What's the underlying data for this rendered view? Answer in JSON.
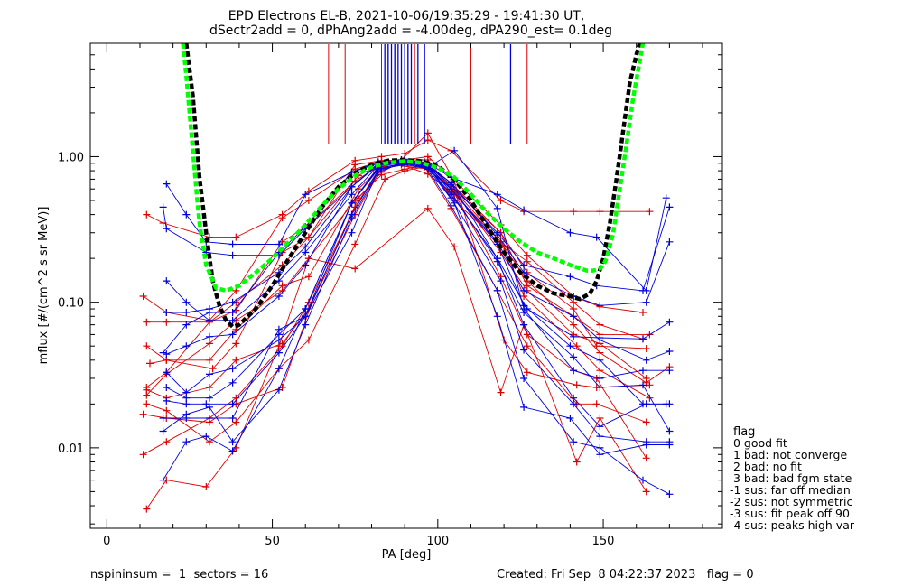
{
  "chart_data": {
    "type": "line",
    "title": "EPD Electrons EL-B, 2021-10-06/19:35:29 - 19:41:30 UT,",
    "subtitle": "dSectr2add = 0, dPhAng2add = -4.00deg, dPA290_est=   0.1deg",
    "xlabel": "PA [deg]",
    "ylabel": "mflux [#/(cm^2 s sr MeV)]",
    "xlim": [
      -5,
      186
    ],
    "ylim": [
      0.0028,
      6.0
    ],
    "yscale": "log",
    "x_ticks": [
      0,
      50,
      100,
      150
    ],
    "y_ticks": [
      0.01,
      0.1,
      1.0
    ],
    "y_tick_labels": [
      "0.01",
      "0.10",
      "1.00"
    ],
    "grid": false,
    "legend": {
      "title": "flag",
      "entries": [
        " 0 good fit",
        " 1 bad: not converge",
        " 2 bad: no fit",
        " 3 bad: bad fgm state",
        "-1 sus: far off median",
        "-2 sus: not symmetric",
        "-3 sus: fit peak off 90",
        "-4 sus: peaks high var"
      ]
    },
    "footer": {
      "left": "nspininsum =  1  sectors = 16",
      "right": "Created: Fri Sep  8 04:22:37 2023   flag = 0"
    },
    "peak_markers": {
      "red_x": [
        67,
        72,
        83,
        85,
        87,
        89,
        91,
        93,
        110,
        127
      ],
      "blue_x": [
        84,
        85,
        86,
        87,
        88,
        89,
        90,
        91,
        92,
        94,
        96,
        122
      ]
    },
    "fit_curves": [
      {
        "color": "#000000",
        "x": [
          24,
          26,
          28,
          30,
          32,
          34,
          36,
          38,
          40,
          45,
          50,
          55,
          60,
          65,
          70,
          75,
          80,
          85,
          90,
          95,
          100,
          105,
          110,
          115,
          120,
          125,
          130,
          135,
          140,
          143,
          146,
          148,
          150,
          152,
          154,
          156,
          158,
          160,
          161
        ],
        "y": [
          6.0,
          2.6,
          0.72,
          0.3,
          0.14,
          0.095,
          0.075,
          0.068,
          0.07,
          0.09,
          0.13,
          0.2,
          0.3,
          0.45,
          0.62,
          0.77,
          0.88,
          0.94,
          0.95,
          0.93,
          0.86,
          0.7,
          0.5,
          0.33,
          0.22,
          0.16,
          0.13,
          0.115,
          0.11,
          0.105,
          0.115,
          0.14,
          0.2,
          0.35,
          0.7,
          1.5,
          3.2,
          5.0,
          6.0
        ]
      },
      {
        "color": "#00ff00",
        "x": [
          23,
          24,
          25,
          26,
          27,
          28,
          30,
          33,
          36,
          40,
          45,
          50,
          55,
          60,
          65,
          70,
          75,
          80,
          85,
          90,
          95,
          100,
          105,
          110,
          115,
          120,
          125,
          130,
          135,
          140,
          145,
          147,
          149,
          150,
          151,
          153,
          155,
          157,
          159,
          161,
          162
        ],
        "y": [
          6.0,
          3.6,
          2.0,
          1.1,
          0.6,
          0.35,
          0.18,
          0.125,
          0.12,
          0.13,
          0.16,
          0.2,
          0.26,
          0.34,
          0.46,
          0.6,
          0.74,
          0.85,
          0.91,
          0.93,
          0.91,
          0.84,
          0.72,
          0.55,
          0.41,
          0.32,
          0.26,
          0.22,
          0.2,
          0.18,
          0.165,
          0.165,
          0.17,
          0.18,
          0.2,
          0.3,
          0.6,
          1.2,
          2.5,
          4.5,
          6.0
        ]
      }
    ],
    "series": [
      {
        "color": "#dd0000",
        "x": [
          12,
          18,
          31,
          39,
          53,
          61,
          75,
          83,
          89,
          97,
          104,
          119,
          127,
          141,
          149,
          163,
          170
        ],
        "y": [
          0.026,
          0.033,
          0.073,
          0.088,
          0.26,
          0.34,
          0.68,
          0.88,
          0.9,
          0.88,
          0.62,
          0.26,
          0.14,
          0.07,
          0.045,
          0.028,
          0.036
        ]
      },
      {
        "color": "#dd0000",
        "x": [
          11,
          18,
          31,
          39,
          53,
          61,
          75,
          83,
          90,
          97,
          105,
          119,
          127,
          141,
          149,
          163
        ],
        "y": [
          0.11,
          0.085,
          0.075,
          0.12,
          0.38,
          0.5,
          0.82,
          0.93,
          0.86,
          0.82,
          0.58,
          0.22,
          0.12,
          0.06,
          0.052,
          0.03
        ]
      },
      {
        "color": "#dd0000",
        "x": [
          12,
          18,
          32,
          39,
          53,
          61,
          76,
          83,
          90,
          97,
          104,
          119,
          127,
          141,
          148,
          163
        ],
        "y": [
          0.05,
          0.04,
          0.035,
          0.052,
          0.22,
          0.28,
          0.74,
          0.9,
          0.9,
          0.84,
          0.62,
          0.3,
          0.16,
          0.09,
          0.05,
          0.048
        ]
      },
      {
        "color": "#dd0000",
        "x": [
          12,
          18,
          31,
          39,
          53,
          61,
          75,
          83,
          90,
          96,
          105,
          120,
          126,
          142,
          149,
          164
        ],
        "y": [
          0.025,
          0.022,
          0.026,
          0.04,
          0.052,
          0.09,
          0.4,
          0.83,
          0.88,
          0.92,
          0.5,
          0.24,
          0.11,
          0.05,
          0.034,
          0.022
        ]
      },
      {
        "color": "#dd0000",
        "x": [
          11,
          18,
          31,
          39,
          53,
          61,
          75,
          83,
          89,
          97,
          105,
          119,
          127,
          141,
          148,
          163
        ],
        "y": [
          0.009,
          0.011,
          0.016,
          0.022,
          0.05,
          0.1,
          0.45,
          0.88,
          0.95,
          0.95,
          0.56,
          0.15,
          0.06,
          0.034,
          0.03,
          0.0085
        ]
      },
      {
        "color": "#dd0000",
        "x": [
          12,
          17,
          31,
          39,
          53,
          61,
          75,
          83,
          90,
          97,
          104,
          119,
          126,
          141,
          149,
          164
        ],
        "y": [
          0.4,
          0.35,
          0.28,
          0.28,
          0.4,
          0.58,
          0.94,
          1.0,
          1.05,
          1.3,
          1.1,
          0.5,
          0.42,
          0.42,
          0.42,
          0.42
        ]
      },
      {
        "color": "#dd0000",
        "x": [
          13,
          18,
          31,
          39,
          53,
          61,
          76,
          83,
          89,
          97,
          105,
          119,
          127,
          141,
          149,
          162
        ],
        "y": [
          0.038,
          0.04,
          0.04,
          0.065,
          0.13,
          0.15,
          0.6,
          0.85,
          0.88,
          0.76,
          0.55,
          0.26,
          0.19,
          0.1,
          0.07,
          0.056
        ]
      },
      {
        "color": "#dd0000",
        "x": [
          12,
          18,
          31,
          39,
          52,
          61,
          75,
          84,
          90,
          96,
          104,
          118,
          127,
          142,
          148,
          163
        ],
        "y": [
          0.02,
          0.018,
          0.011,
          0.015,
          0.035,
          0.055,
          0.25,
          0.7,
          0.8,
          0.85,
          0.44,
          0.12,
          0.05,
          0.02,
          0.02,
          0.015
        ]
      },
      {
        "color": "#dd0000",
        "x": [
          12,
          18,
          30,
          39,
          52,
          61,
          75,
          97,
          105,
          119,
          126,
          142,
          149,
          163
        ],
        "y": [
          0.0038,
          0.006,
          0.0054,
          0.01,
          0.05,
          0.2,
          0.17,
          0.44,
          0.24,
          0.024,
          0.07,
          0.008,
          0.016,
          0.005
        ]
      },
      {
        "color": "#dd0000",
        "x": [
          12,
          18,
          31,
          39,
          53,
          61,
          75,
          83,
          89,
          97,
          105,
          120,
          127,
          142,
          148,
          164
        ],
        "y": [
          0.073,
          0.073,
          0.073,
          0.1,
          0.18,
          0.28,
          0.88,
          0.94,
          0.95,
          1.45,
          0.68,
          0.055,
          0.033,
          0.027,
          0.026,
          0.027
        ]
      },
      {
        "color": "#dd0000",
        "x": [
          11,
          18,
          31,
          39,
          53,
          62,
          76,
          83,
          90,
          97,
          104,
          119,
          127,
          141,
          149,
          162
        ],
        "y": [
          0.017,
          0.016,
          0.015,
          0.02,
          0.026,
          0.1,
          0.52,
          0.78,
          0.95,
          1.0,
          0.72,
          0.34,
          0.21,
          0.11,
          0.093,
          0.085
        ]
      },
      {
        "color": "#dd0000",
        "x": [
          12,
          18,
          31,
          39,
          53,
          61,
          75,
          83,
          90,
          97,
          104,
          119,
          127,
          141,
          149,
          164
        ],
        "y": [
          0.023,
          0.032,
          0.052,
          0.075,
          0.12,
          0.2,
          0.5,
          0.75,
          0.82,
          0.88,
          0.66,
          0.3,
          0.13,
          0.08,
          0.06,
          0.06
        ]
      },
      {
        "color": "#0000dd",
        "x": [
          17,
          18,
          30,
          38,
          52,
          60,
          74,
          82,
          90,
          96,
          104,
          118,
          126,
          140,
          148,
          162,
          170
        ],
        "y": [
          0.45,
          0.32,
          0.22,
          0.21,
          0.21,
          0.32,
          0.62,
          0.88,
          0.96,
          0.9,
          0.64,
          0.3,
          0.18,
          0.15,
          0.13,
          0.12,
          0.45
        ]
      },
      {
        "color": "#0000dd",
        "x": [
          18,
          24,
          30,
          38,
          52,
          60,
          74,
          82,
          90,
          97,
          104,
          118,
          126,
          140,
          148,
          163,
          169
        ],
        "y": [
          0.65,
          0.4,
          0.26,
          0.25,
          0.25,
          0.55,
          0.78,
          0.92,
          0.95,
          0.9,
          0.72,
          0.55,
          0.43,
          0.3,
          0.28,
          0.12,
          0.52
        ]
      },
      {
        "color": "#0000dd",
        "x": [
          17,
          24,
          31,
          38,
          52,
          60,
          74,
          82,
          90,
          97,
          104,
          118,
          126,
          140,
          149,
          162,
          169
        ],
        "y": [
          0.045,
          0.07,
          0.085,
          0.085,
          0.22,
          0.33,
          0.78,
          0.9,
          0.92,
          0.82,
          0.6,
          0.25,
          0.095,
          0.05,
          0.04,
          0.02,
          0.02
        ]
      },
      {
        "color": "#0000dd",
        "x": [
          18,
          24,
          31,
          38,
          52,
          60,
          74,
          82,
          89,
          97,
          105,
          118,
          126,
          141,
          149,
          162,
          170
        ],
        "y": [
          0.033,
          0.024,
          0.032,
          0.035,
          0.055,
          0.08,
          0.3,
          0.82,
          0.9,
          0.84,
          1.1,
          0.44,
          0.09,
          0.034,
          0.03,
          0.034,
          0.034
        ]
      },
      {
        "color": "#0000dd",
        "x": [
          17,
          24,
          31,
          38,
          52,
          60,
          74,
          82,
          90,
          97,
          104,
          119,
          126,
          141,
          149,
          163,
          170
        ],
        "y": [
          0.016,
          0.016,
          0.016,
          0.016,
          0.065,
          0.08,
          0.48,
          0.85,
          0.92,
          0.86,
          0.52,
          0.14,
          0.047,
          0.02,
          0.012,
          0.011,
          0.011
        ]
      },
      {
        "color": "#0000dd",
        "x": [
          18,
          24,
          30,
          38,
          52,
          60,
          74,
          82,
          90,
          97,
          104,
          118,
          126,
          141,
          149,
          163,
          170
        ],
        "y": [
          0.021,
          0.02,
          0.02,
          0.02,
          0.045,
          0.08,
          0.4,
          0.8,
          0.9,
          0.85,
          0.55,
          0.2,
          0.07,
          0.022,
          0.014,
          0.02,
          0.02
        ]
      },
      {
        "color": "#0000dd",
        "x": [
          17,
          24,
          30,
          38,
          52,
          60,
          74,
          82,
          90,
          97,
          105,
          118,
          126,
          140,
          149,
          163,
          170
        ],
        "y": [
          0.006,
          0.011,
          0.012,
          0.0095,
          0.035,
          0.09,
          0.48,
          0.82,
          0.88,
          0.83,
          0.48,
          0.08,
          0.019,
          0.016,
          0.009,
          0.0105,
          0.0105
        ]
      },
      {
        "color": "#0000dd",
        "x": [
          18,
          24,
          31,
          38,
          52,
          60,
          74,
          82,
          89,
          97,
          104,
          118,
          127,
          141,
          149,
          162,
          170
        ],
        "y": [
          0.14,
          0.1,
          0.075,
          0.075,
          0.14,
          0.22,
          0.55,
          0.87,
          0.93,
          0.88,
          0.66,
          0.2,
          0.09,
          0.058,
          0.057,
          0.056,
          0.073
        ]
      },
      {
        "color": "#0000dd",
        "x": [
          18,
          24,
          31,
          38,
          52,
          60,
          74,
          82,
          89,
          97,
          104,
          118,
          126,
          141,
          149,
          162,
          170
        ],
        "y": [
          0.026,
          0.022,
          0.022,
          0.028,
          0.06,
          0.09,
          0.48,
          0.84,
          0.95,
          0.88,
          0.57,
          0.19,
          0.085,
          0.042,
          0.026,
          0.027,
          0.013
        ]
      },
      {
        "color": "#0000dd",
        "x": [
          18,
          24,
          31,
          38,
          52,
          60,
          74,
          82,
          89,
          97,
          104,
          118,
          126,
          141,
          149,
          163,
          170
        ],
        "y": [
          0.044,
          0.05,
          0.058,
          0.06,
          0.11,
          0.18,
          0.62,
          0.88,
          0.93,
          0.86,
          0.6,
          0.26,
          0.12,
          0.08,
          0.055,
          0.04,
          0.046
        ]
      },
      {
        "color": "#0000dd",
        "x": [
          17,
          24,
          31,
          38,
          52,
          60,
          74,
          82,
          90,
          96,
          104,
          118,
          126,
          141,
          149,
          162,
          170
        ],
        "y": [
          0.013,
          0.017,
          0.019,
          0.011,
          0.025,
          0.07,
          0.38,
          0.78,
          0.92,
          0.88,
          0.46,
          0.12,
          0.03,
          0.011,
          0.01,
          0.006,
          0.0048
        ]
      },
      {
        "color": "#0000dd",
        "x": [
          18,
          24,
          31,
          38,
          52,
          60,
          74,
          82,
          89,
          97,
          104,
          118,
          126,
          141,
          149,
          163,
          170
        ],
        "y": [
          0.085,
          0.085,
          0.09,
          0.1,
          0.16,
          0.24,
          0.62,
          0.9,
          0.94,
          0.86,
          0.66,
          0.29,
          0.16,
          0.11,
          0.095,
          0.1,
          0.26
        ]
      }
    ]
  }
}
